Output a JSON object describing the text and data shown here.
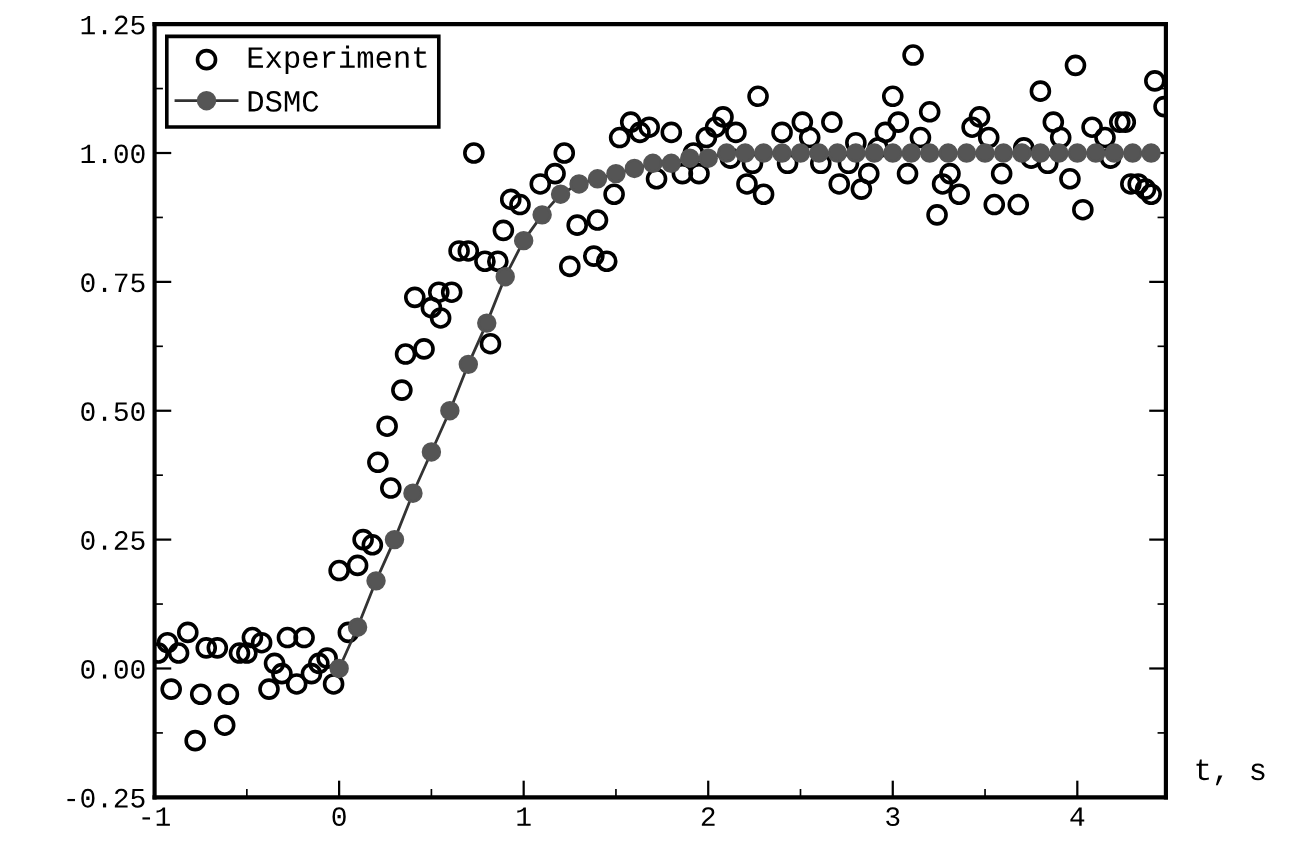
{
  "chart_data": {
    "type": "scatter",
    "xlabel": "t, s",
    "xlim": [
      -1,
      4.48
    ],
    "ylim": [
      -0.25,
      1.25
    ],
    "xticks": [
      -1,
      0,
      1,
      2,
      3,
      4
    ],
    "yticks": [
      {
        "value": -0.25,
        "label": "-0.25"
      },
      {
        "value": 0,
        "label": "0.00"
      },
      {
        "value": 0.25,
        "label": "0.25"
      },
      {
        "value": 0.5,
        "label": "0.50"
      },
      {
        "value": 0.75,
        "label": "0.75"
      },
      {
        "value": 1,
        "label": "1.00"
      },
      {
        "value": 1.25,
        "label": "1.25"
      }
    ],
    "grid": false,
    "legend": "top left",
    "series": [
      {
        "name": "Experiment",
        "marker": "circle",
        "color": "#000000",
        "x": [
          -0.98,
          -0.93,
          -0.91,
          -0.87,
          -0.82,
          -0.78,
          -0.75,
          -0.72,
          -0.66,
          -0.62,
          -0.6,
          -0.54,
          -0.5,
          -0.47,
          -0.42,
          -0.38,
          -0.35,
          -0.31,
          -0.28,
          -0.23,
          -0.19,
          -0.15,
          -0.11,
          -0.065,
          -0.03,
          0.0,
          0.05,
          0.1,
          0.13,
          0.18,
          0.21,
          0.26,
          0.28,
          0.34,
          0.36,
          0.41,
          0.46,
          0.5,
          0.54,
          0.55,
          0.61,
          0.65,
          0.7,
          0.73,
          0.79,
          0.82,
          0.86,
          0.89,
          0.93,
          0.98,
          1.09,
          1.17,
          1.22,
          1.25,
          1.29,
          1.38,
          1.4,
          1.45,
          1.49,
          1.52,
          1.58,
          1.63,
          1.68,
          1.72,
          1.8,
          1.86,
          1.92,
          1.95,
          1.99,
          2.04,
          2.08,
          2.12,
          2.15,
          2.21,
          2.24,
          2.27,
          2.3,
          2.4,
          2.43,
          2.51,
          2.55,
          2.61,
          2.67,
          2.71,
          2.76,
          2.8,
          2.83,
          2.87,
          2.92,
          2.96,
          3.0,
          3.03,
          3.08,
          3.11,
          3.15,
          3.2,
          3.24,
          3.27,
          3.31,
          3.36,
          3.43,
          3.47,
          3.52,
          3.55,
          3.59,
          3.68,
          3.71,
          3.75,
          3.8,
          3.84,
          3.87,
          3.91,
          3.96,
          3.99,
          4.03,
          4.08,
          4.15,
          4.18,
          4.23,
          4.26,
          4.29,
          4.33,
          4.37,
          4.4,
          4.42,
          4.47
        ],
        "values": [
          0.03,
          0.05,
          -0.04,
          0.03,
          0.07,
          -0.14,
          -0.05,
          0.04,
          0.04,
          -0.11,
          -0.05,
          0.03,
          0.03,
          0.06,
          0.05,
          -0.04,
          0.01,
          -0.01,
          0.06,
          -0.03,
          0.06,
          -0.01,
          0.01,
          0.02,
          -0.03,
          0.19,
          0.07,
          0.2,
          0.25,
          0.24,
          0.4,
          0.47,
          0.35,
          0.54,
          0.61,
          0.72,
          0.62,
          0.7,
          0.73,
          0.68,
          0.73,
          0.81,
          0.81,
          1.0,
          0.79,
          0.63,
          0.79,
          0.85,
          0.91,
          0.9,
          0.94,
          0.96,
          1.0,
          0.78,
          0.86,
          0.8,
          0.87,
          0.79,
          0.92,
          1.03,
          1.06,
          1.04,
          1.05,
          0.95,
          1.04,
          0.96,
          1.0,
          0.96,
          1.03,
          1.05,
          1.07,
          0.99,
          1.04,
          0.94,
          0.98,
          1.11,
          0.92,
          1.04,
          0.98,
          1.06,
          1.03,
          0.98,
          1.06,
          0.94,
          0.98,
          1.02,
          0.93,
          0.96,
          1.01,
          1.04,
          1.11,
          1.06,
          0.96,
          1.19,
          1.03,
          1.08,
          0.88,
          0.94,
          0.96,
          0.92,
          1.05,
          1.07,
          1.03,
          0.9,
          0.96,
          0.9,
          1.01,
          0.99,
          1.12,
          0.98,
          1.06,
          1.03,
          0.95,
          1.17,
          0.89,
          1.05,
          1.03,
          0.99,
          1.06,
          1.06,
          0.94,
          0.94,
          0.93,
          0.92,
          1.14,
          1.09
        ]
      },
      {
        "name": "DSMC",
        "type": "line",
        "marker": "circle",
        "line_style": "solid",
        "color": "#555555",
        "x": [
          0,
          0.1,
          0.2,
          0.3,
          0.4,
          0.5,
          0.6,
          0.7,
          0.8,
          0.9,
          1.0,
          1.1,
          1.2,
          1.3,
          1.4,
          1.5,
          1.6,
          1.7,
          1.8,
          1.9,
          2.0,
          2.1,
          2.2,
          2.3,
          2.4,
          2.5,
          2.6,
          2.7,
          2.8,
          2.9,
          3.0,
          3.1,
          3.2,
          3.3,
          3.4,
          3.5,
          3.6,
          3.7,
          3.8,
          3.9,
          4.0,
          4.1,
          4.2,
          4.3,
          4.4
        ],
        "values": [
          0.0,
          0.08,
          0.17,
          0.25,
          0.34,
          0.42,
          0.5,
          0.59,
          0.67,
          0.76,
          0.83,
          0.88,
          0.92,
          0.94,
          0.95,
          0.96,
          0.97,
          0.98,
          0.98,
          0.99,
          0.99,
          1.0,
          1.0,
          1.0,
          1.0,
          1.0,
          1.0,
          1.0,
          1.0,
          1.0,
          1.0,
          1.0,
          1.0,
          1.0,
          1.0,
          1.0,
          1.0,
          1.0,
          1.0,
          1.0,
          1.0,
          1.0,
          1.0,
          1.0,
          1.0
        ]
      }
    ]
  }
}
